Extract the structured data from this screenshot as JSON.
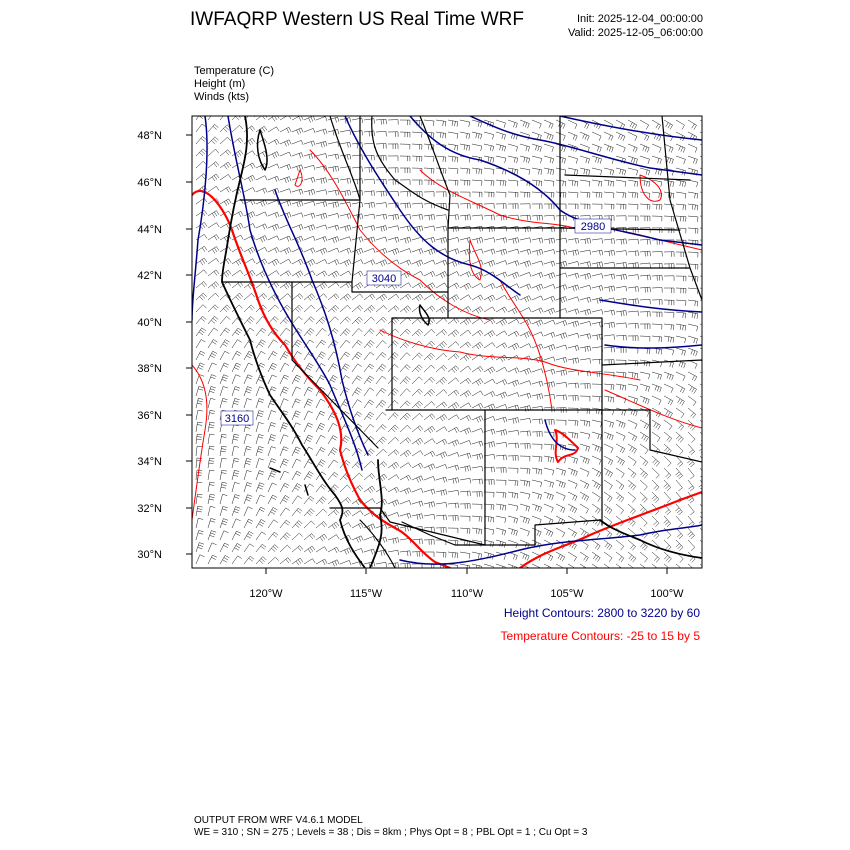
{
  "header": {
    "title": "IWFAQRP Western US Real Time WRF",
    "init": "Init: 2025-12-04_00:00:00",
    "valid": "Valid: 2025-12-05_06:00:00"
  },
  "fields": [
    "Temperature   (C)",
    "Height   (m)",
    "Winds   (kts)"
  ],
  "axes": {
    "lat_labels": [
      "48°N",
      "46°N",
      "44°N",
      "42°N",
      "40°N",
      "38°N",
      "36°N",
      "34°N",
      "32°N",
      "30°N"
    ],
    "lon_labels": [
      "120°W",
      "115°W",
      "110°W",
      "105°W",
      "100°W"
    ]
  },
  "contour_labels": [
    "3040",
    "2980",
    "3160"
  ],
  "notes": {
    "height": "Height Contours: 2800 to 3220 by 60",
    "temperature": "Temperature Contours: -25 to 15 by 5"
  },
  "footer": {
    "line1": "OUTPUT FROM WRF V4.6.1 MODEL",
    "line2": "WE = 310 ; SN = 275 ; Levels = 38 ; Dis = 8km ; Phys Opt = 8 ; PBL Opt = 1 ; Cu Opt = 3"
  },
  "colors": {
    "height_contour": "#00008b",
    "temperature_contour": "#ff0000",
    "borders": "#000000"
  }
}
